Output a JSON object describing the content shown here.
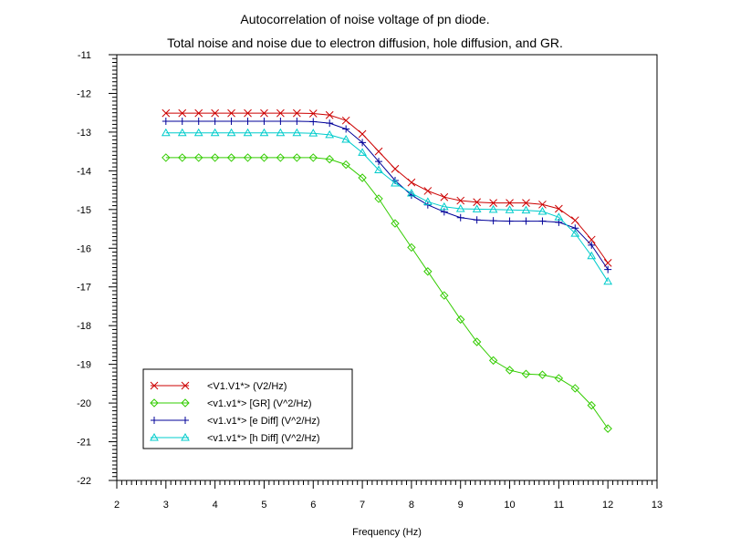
{
  "chart_data": {
    "type": "line",
    "title": "Autocorrelation of noise voltage of pn diode.",
    "subtitle": "Total noise and noise due to electron diffusion, hole diffusion, and GR.",
    "xlabel": "Frequency (Hz)",
    "ylabel": "",
    "xlim": [
      2,
      13
    ],
    "ylim": [
      -22,
      -11
    ],
    "x_ticks": [
      "2",
      "3",
      "4",
      "5",
      "6",
      "7",
      "8",
      "9",
      "10",
      "11",
      "12",
      "13"
    ],
    "y_ticks": [
      "-11",
      "-12",
      "-13",
      "-14",
      "-15",
      "-16",
      "-17",
      "-18",
      "-19",
      "-20",
      "-21",
      "-22"
    ],
    "legend_position": "bottom-left",
    "x": [
      3.0,
      3.333,
      3.667,
      4.0,
      4.333,
      4.667,
      5.0,
      5.333,
      5.667,
      6.0,
      6.333,
      6.667,
      7.0,
      7.333,
      7.667,
      8.0,
      8.333,
      8.667,
      9.0,
      9.333,
      9.667,
      10.0,
      10.333,
      10.667,
      11.0,
      11.333,
      11.667,
      12.0
    ],
    "series": [
      {
        "name": "<V1.V1*> (V2/Hz)",
        "color": "#cc0000",
        "marker": "x",
        "values": [
          -12.51,
          -12.51,
          -12.51,
          -12.51,
          -12.51,
          -12.51,
          -12.51,
          -12.51,
          -12.51,
          -12.52,
          -12.56,
          -12.7,
          -13.05,
          -13.5,
          -13.95,
          -14.3,
          -14.52,
          -14.68,
          -14.77,
          -14.81,
          -14.83,
          -14.83,
          -14.83,
          -14.87,
          -14.98,
          -15.28,
          -15.78,
          -16.38
        ]
      },
      {
        "name": "<v1.v1*> [GR] (V^2/Hz)",
        "color": "#33cc00",
        "marker": "diamond",
        "values": [
          -13.66,
          -13.66,
          -13.66,
          -13.66,
          -13.66,
          -13.66,
          -13.66,
          -13.66,
          -13.66,
          -13.66,
          -13.7,
          -13.84,
          -14.18,
          -14.72,
          -15.36,
          -15.98,
          -16.6,
          -17.22,
          -17.84,
          -18.42,
          -18.9,
          -19.15,
          -19.25,
          -19.27,
          -19.36,
          -19.62,
          -20.06,
          -20.66
        ]
      },
      {
        "name": "<v1.v1*> [e Diff] (V^2/Hz)",
        "color": "#000099",
        "marker": "plus",
        "values": [
          -12.72,
          -12.72,
          -12.72,
          -12.72,
          -12.72,
          -12.72,
          -12.72,
          -12.72,
          -12.72,
          -12.73,
          -12.77,
          -12.92,
          -13.27,
          -13.76,
          -14.25,
          -14.63,
          -14.88,
          -15.06,
          -15.21,
          -15.27,
          -15.29,
          -15.3,
          -15.3,
          -15.3,
          -15.33,
          -15.48,
          -15.92,
          -16.55
        ]
      },
      {
        "name": "<v1.v1*> [h Diff] (V^2/Hz)",
        "color": "#00cccc",
        "marker": "triangle",
        "values": [
          -13.02,
          -13.02,
          -13.02,
          -13.02,
          -13.02,
          -13.02,
          -13.02,
          -13.02,
          -13.02,
          -13.03,
          -13.07,
          -13.19,
          -13.53,
          -13.98,
          -14.32,
          -14.58,
          -14.8,
          -14.93,
          -14.98,
          -14.99,
          -15.0,
          -15.01,
          -15.02,
          -15.05,
          -15.2,
          -15.62,
          -16.2,
          -16.86
        ]
      }
    ]
  }
}
